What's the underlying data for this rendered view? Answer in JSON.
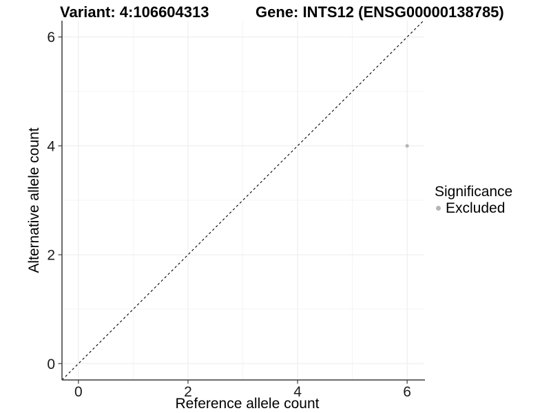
{
  "chart_data": {
    "type": "scatter",
    "title_left": "Variant: 4:106604313",
    "title_right": "Gene: INTS12 (ENSG00000138785)",
    "xlabel": "Reference allele count",
    "ylabel": "Alternative allele count",
    "xlim": [
      -0.3,
      6.3
    ],
    "ylim": [
      -0.3,
      6.3
    ],
    "xticks": [
      0,
      2,
      4,
      6
    ],
    "yticks": [
      0,
      2,
      4,
      6
    ],
    "minor_ticks_x": [
      1,
      3,
      5
    ],
    "minor_ticks_y": [
      1,
      3,
      5
    ],
    "grid": "major+minor",
    "reference_line": {
      "type": "identity",
      "style": "dashed",
      "color": "#000000"
    },
    "series": [
      {
        "name": "Excluded",
        "color": "#b5b5b5",
        "point_radius": 2.6,
        "points": [
          {
            "x": 6,
            "y": 4
          }
        ]
      }
    ],
    "legend": {
      "title": "Significance",
      "position": "right",
      "entries": [
        {
          "label": "Excluded",
          "color": "#b5b5b5"
        }
      ]
    },
    "colors": {
      "background": "#ffffff",
      "grid_major": "#ebebeb",
      "grid_minor": "#f4f4f4",
      "axis_line": "#3a3a3a",
      "tick_text": "#1a1a1a",
      "title_text": "#000000"
    }
  }
}
